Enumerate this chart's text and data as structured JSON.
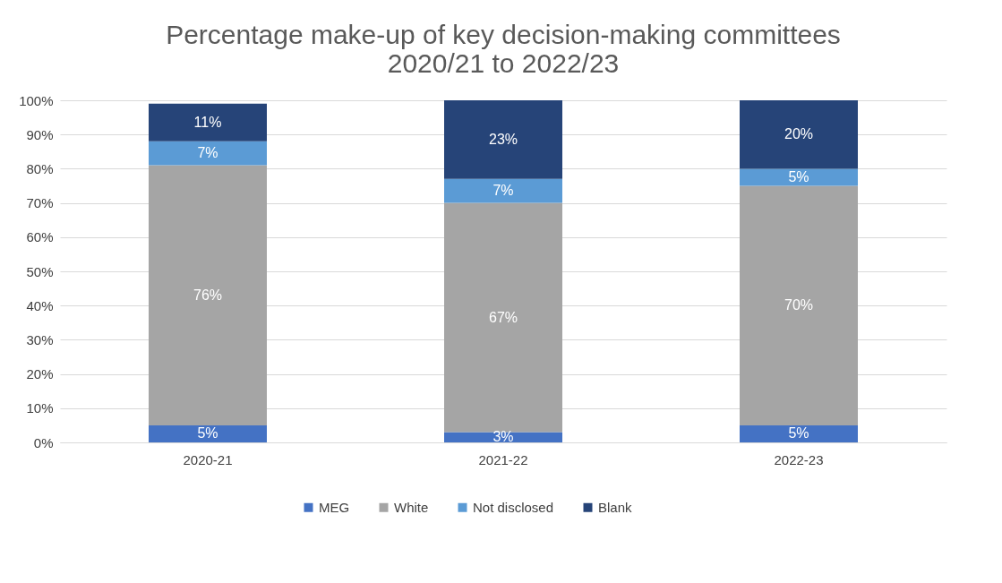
{
  "chart_data": {
    "type": "bar",
    "title": "Percentage make-up of key decision-making committees\n2020/21 to 2022/23",
    "categories": [
      "2020-21",
      "2021-22",
      "2022-23"
    ],
    "stacked": true,
    "series": [
      {
        "name": "MEG",
        "color": "#4472c4",
        "values": [
          5,
          3,
          5
        ],
        "value_labels": [
          "5%",
          "3%",
          "5%"
        ]
      },
      {
        "name": "White",
        "color": "#a5a5a5",
        "values": [
          76,
          67,
          70
        ],
        "value_labels": [
          "76%",
          "67%",
          "70%"
        ]
      },
      {
        "name": "Not disclosed",
        "color": "#5b9bd5",
        "values": [
          7,
          7,
          5
        ],
        "value_labels": [
          "7%",
          "7%",
          "5%"
        ]
      },
      {
        "name": "Blank",
        "color": "#264478",
        "values": [
          11,
          23,
          20
        ],
        "value_labels": [
          "11%",
          "23%",
          "20%"
        ]
      }
    ],
    "ylim": [
      0,
      100
    ],
    "yticks": [
      {
        "value": 0,
        "label": "0%"
      },
      {
        "value": 10,
        "label": "10%"
      },
      {
        "value": 20,
        "label": "20%"
      },
      {
        "value": 30,
        "label": "30%"
      },
      {
        "value": 40,
        "label": "40%"
      },
      {
        "value": 50,
        "label": "50%"
      },
      {
        "value": 60,
        "label": "60%"
      },
      {
        "value": 70,
        "label": "70%"
      },
      {
        "value": 80,
        "label": "80%"
      },
      {
        "value": 90,
        "label": "90%"
      },
      {
        "value": 100,
        "label": "100%"
      }
    ],
    "grid": "y",
    "legend": "bottom"
  }
}
